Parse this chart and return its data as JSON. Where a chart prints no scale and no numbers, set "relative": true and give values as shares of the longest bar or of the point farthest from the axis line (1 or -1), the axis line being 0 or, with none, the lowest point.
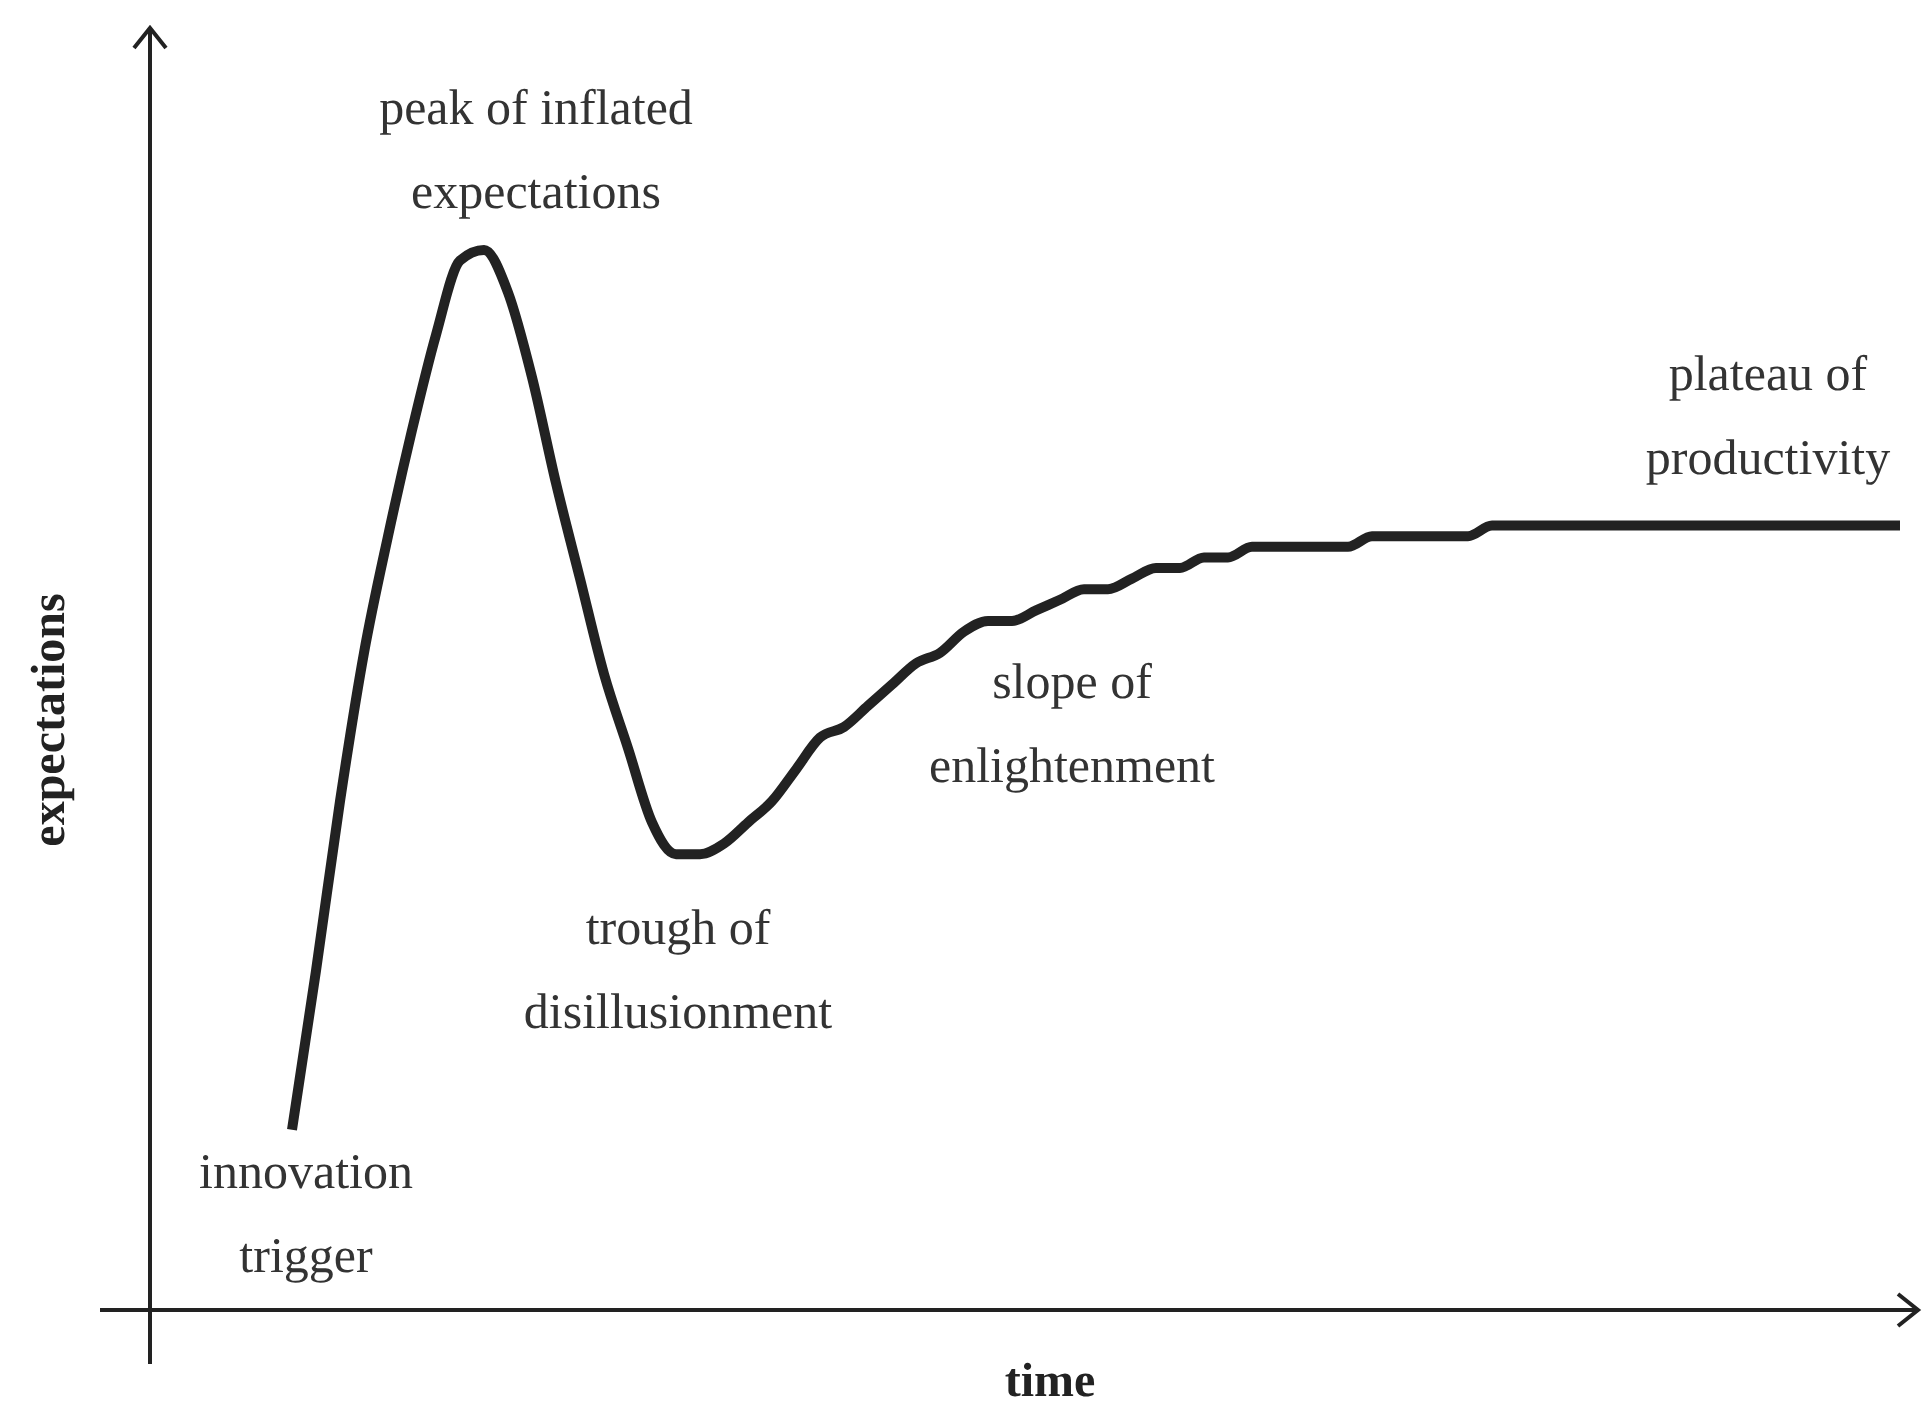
{
  "chart_data": {
    "type": "line",
    "xlabel": "time",
    "ylabel": "expectations",
    "relative": true,
    "categories": [
      null,
      null,
      null,
      null,
      null,
      null,
      null,
      null,
      null,
      null,
      null,
      null,
      null,
      null,
      null,
      null,
      null,
      null,
      null,
      null,
      null,
      null,
      null,
      null,
      null,
      null,
      null,
      null,
      null,
      null,
      null,
      null,
      null,
      null,
      null,
      null,
      null,
      null,
      null,
      null,
      null,
      null,
      null,
      null,
      null,
      null,
      null,
      null,
      null,
      null,
      null,
      null,
      null,
      null,
      null,
      null,
      null,
      null,
      null,
      null,
      null,
      null,
      null,
      null,
      null,
      null,
      null,
      null
    ],
    "series": [
      {
        "color": "#222222",
        "values": [
          0.17,
          0.32,
          0.48,
          0.62,
          0.73,
          0.83,
          0.92,
          0.99,
          1.0,
          0.96,
          0.88,
          0.78,
          0.69,
          0.6,
          0.53,
          0.46,
          0.43,
          0.43,
          0.44,
          0.46,
          0.48,
          0.51,
          0.54,
          0.55,
          0.57,
          0.59,
          0.61,
          0.62,
          0.64,
          0.65,
          0.65,
          0.66,
          0.67,
          0.68,
          0.68,
          0.69,
          0.7,
          0.7,
          0.71,
          0.71,
          0.72,
          0.72,
          0.72,
          0.72,
          0.72,
          0.73,
          0.73,
          0.73,
          0.73,
          0.73,
          0.74,
          0.74,
          0.74,
          0.74,
          0.74,
          0.74,
          0.74,
          0.74,
          0.74,
          0.74,
          0.74,
          0.74,
          0.74,
          0.74,
          0.74,
          0.74,
          0.74,
          0.74
        ]
      }
    ],
    "annotations": [
      "innovation trigger",
      "peak of inflated expectations",
      "trough of disillusionment",
      "slope of enlightenment",
      "plateau of productivity"
    ]
  }
}
